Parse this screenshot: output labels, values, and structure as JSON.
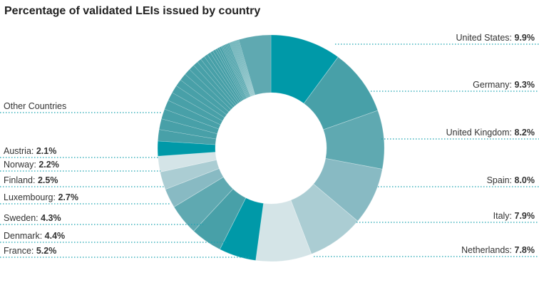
{
  "chart_data": {
    "type": "pie",
    "variant": "donut",
    "title": "Percentage of validated LEIs issued by country",
    "slices": [
      {
        "label": "United States",
        "value": 9.9,
        "value_text": "9.9%",
        "color": "#0099a8",
        "side": "right"
      },
      {
        "label": "Germany",
        "value": 9.3,
        "value_text": "9.3%",
        "color": "#48a0a8",
        "side": "right"
      },
      {
        "label": "United Kingdom",
        "value": 8.2,
        "value_text": "8.2%",
        "color": "#5fa9b1",
        "side": "right"
      },
      {
        "label": "Spain",
        "value": 8.0,
        "value_text": "8.0%",
        "color": "#88bac3",
        "side": "right"
      },
      {
        "label": "Italy",
        "value": 7.9,
        "value_text": "7.9%",
        "color": "#abcdd3",
        "side": "right"
      },
      {
        "label": "Netherlands",
        "value": 7.8,
        "value_text": "7.8%",
        "color": "#d4e4e7",
        "side": "right"
      },
      {
        "label": "France",
        "value": 5.2,
        "value_text": "5.2%",
        "color": "#0099a8",
        "side": "left"
      },
      {
        "label": "Denmark",
        "value": 4.4,
        "value_text": "4.4%",
        "color": "#48a0a8",
        "side": "left"
      },
      {
        "label": "Sweden",
        "value": 4.3,
        "value_text": "4.3%",
        "color": "#5fa9b1",
        "side": "left"
      },
      {
        "label": "Luxembourg",
        "value": 2.7,
        "value_text": "2.7%",
        "color": "#88bac3",
        "side": "left"
      },
      {
        "label": "Finland",
        "value": 2.5,
        "value_text": "2.5%",
        "color": "#abcdd3",
        "side": "left"
      },
      {
        "label": "Norway",
        "value": 2.2,
        "value_text": "2.2%",
        "color": "#d4e4e7",
        "side": "left"
      },
      {
        "label": "Austria",
        "value": 2.1,
        "value_text": "2.1%",
        "color": "#0099a8",
        "side": "left"
      }
    ],
    "other": {
      "label": "Other Countries",
      "color": "#48a0a8",
      "last_color": "#5fa9b1",
      "values": [
        1.6,
        1.5,
        1.4,
        1.3,
        1.2,
        1.1,
        1.0,
        1.0,
        0.9,
        0.8,
        0.7,
        0.6,
        0.6,
        0.5,
        0.5,
        0.4,
        0.4,
        0.3,
        0.3,
        0.3,
        0.2,
        0.2,
        0.2,
        0.2,
        0.2,
        0.2,
        0.1,
        0.1,
        0.1,
        0.1,
        0.1,
        0.1,
        0.1,
        0.1,
        0.1,
        0.1,
        0.1,
        0.1,
        0.1,
        0.1,
        4.5
      ]
    }
  }
}
